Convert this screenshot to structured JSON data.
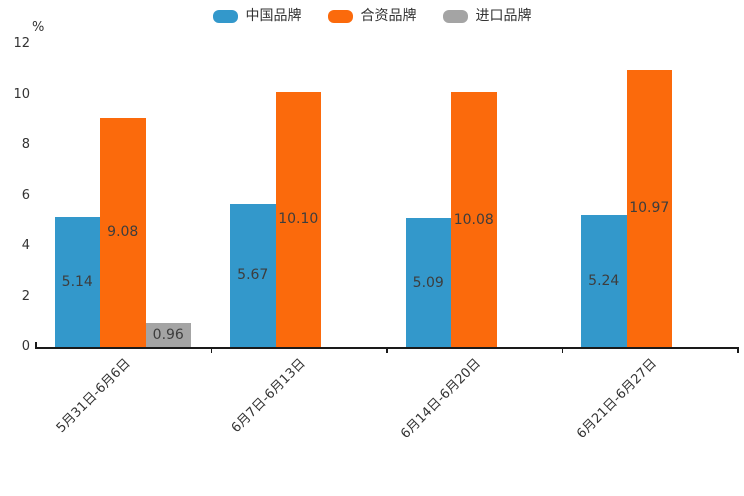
{
  "chart_data": {
    "type": "bar",
    "title": "",
    "ylabel": "%",
    "ylim": [
      0,
      12
    ],
    "yticks": [
      0,
      2,
      4,
      6,
      8,
      10,
      12
    ],
    "grid": false,
    "legend_position": "top",
    "categories": [
      "5月31日-6月6日",
      "6月7日-6月13日",
      "6月14日-6月20日",
      "6月21日-6月27日"
    ],
    "series": [
      {
        "id": "china-brand",
        "name": "中国品牌",
        "color": "#3398cb",
        "values": [
          5.14,
          5.67,
          5.09,
          5.24
        ],
        "labels": [
          "5.14",
          "5.67",
          "5.09",
          "5.24"
        ]
      },
      {
        "id": "joint-venture-brand",
        "name": "合资品牌",
        "color": "#fb6a0c",
        "values": [
          9.08,
          10.1,
          10.08,
          10.97
        ],
        "labels": [
          "9.08",
          "10.10",
          "10.08",
          "10.97"
        ]
      },
      {
        "id": "import-brand",
        "name": "进口品牌",
        "color": "#a4a4a4",
        "values": [
          0.96,
          null,
          null,
          null
        ],
        "labels": [
          "0.96",
          "",
          "",
          ""
        ]
      }
    ],
    "colors": {
      "axis": "#1a1a1a",
      "tick_text": "#333333",
      "value_label_text": "#3d3d3d",
      "background": "#ffffff"
    }
  }
}
